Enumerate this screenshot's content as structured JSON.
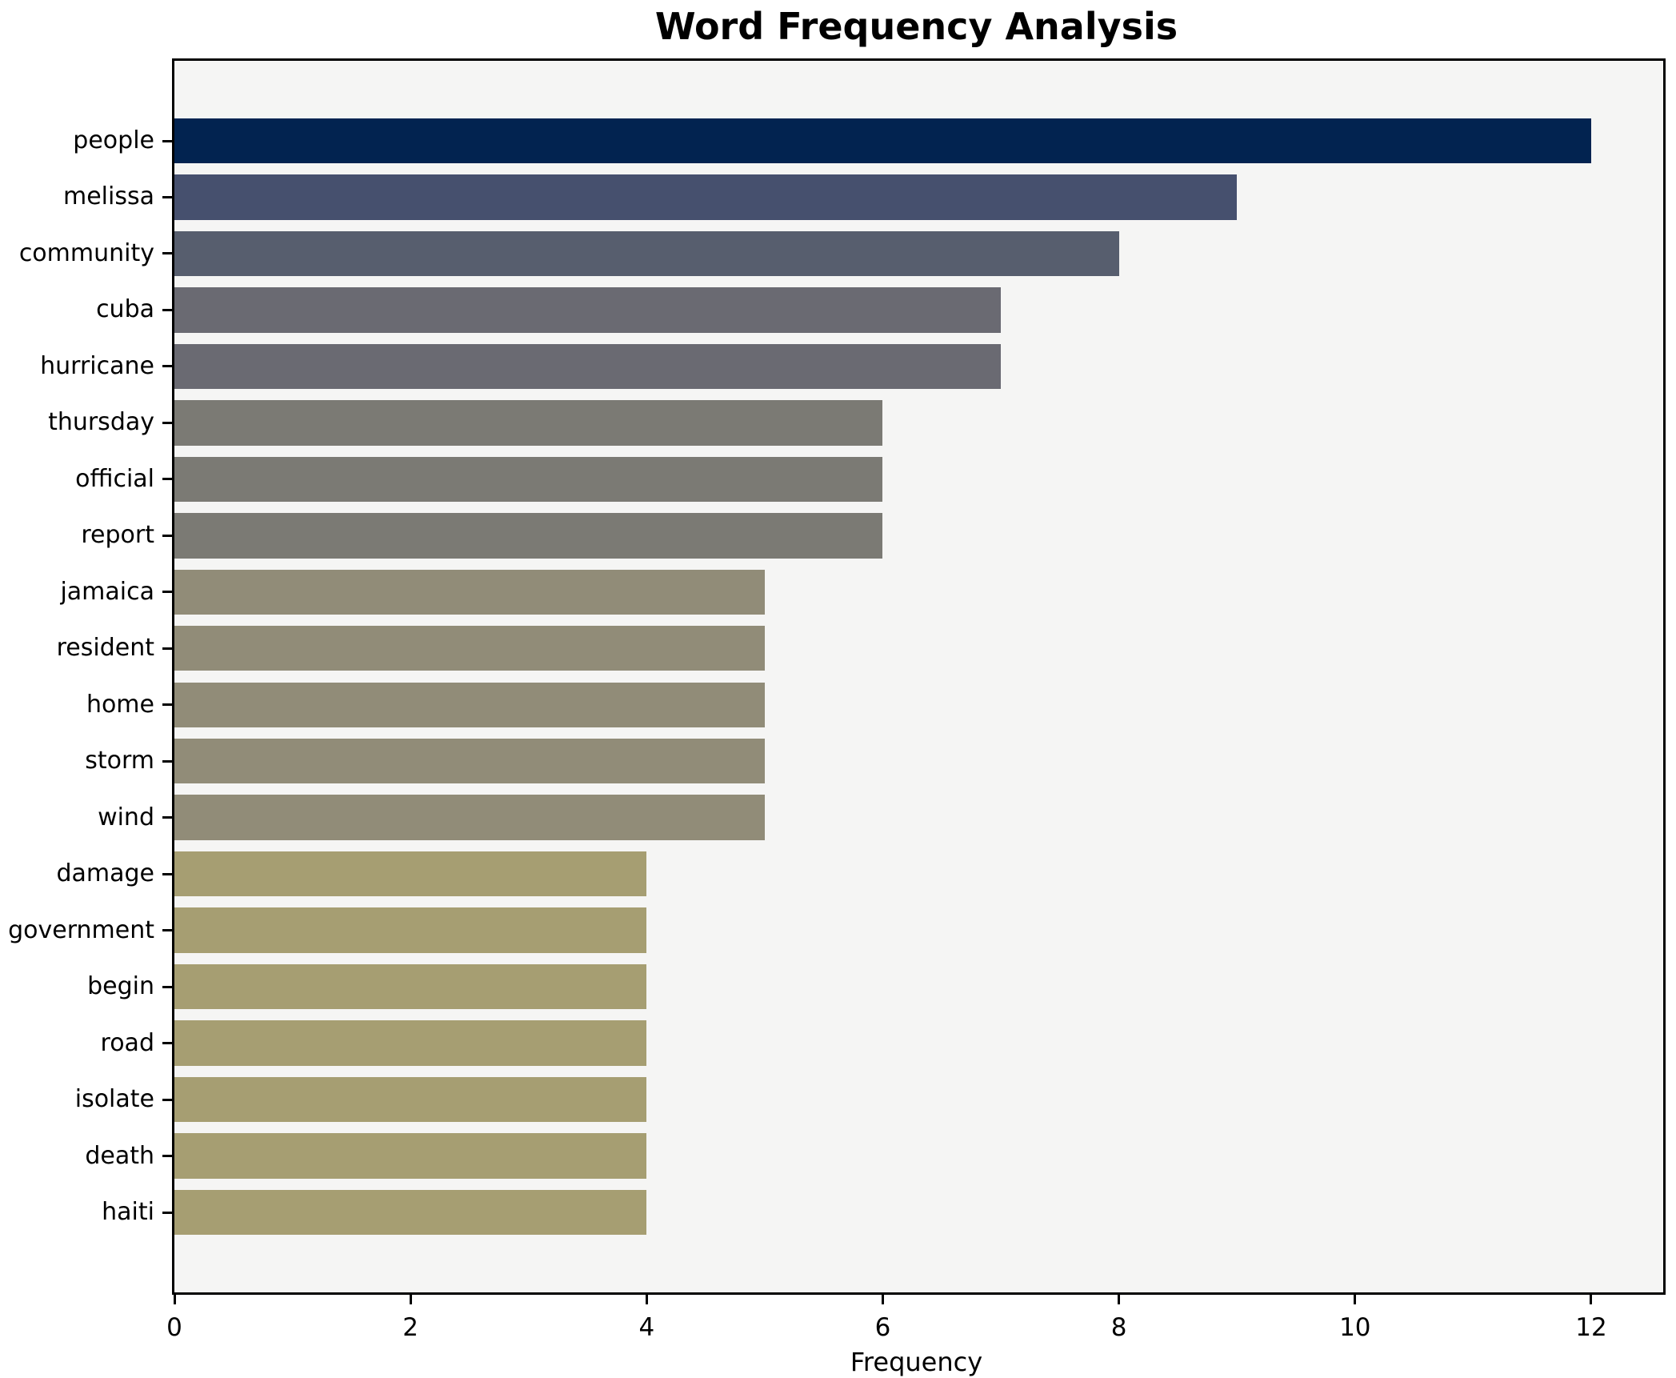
{
  "figure": {
    "background": "#ffffff",
    "plot_background": "#f5f5f4",
    "spine_color": "#000000"
  },
  "chart_data": {
    "type": "bar",
    "orientation": "horizontal",
    "title": "Word Frequency Analysis",
    "xlabel": "Frequency",
    "ylabel": "",
    "categories": [
      "people",
      "melissa",
      "community",
      "cuba",
      "hurricane",
      "thursday",
      "official",
      "report",
      "jamaica",
      "resident",
      "home",
      "storm",
      "wind",
      "damage",
      "government",
      "begin",
      "road",
      "isolate",
      "death",
      "haiti"
    ],
    "values": [
      12,
      9,
      8,
      7,
      7,
      6,
      6,
      6,
      5,
      5,
      5,
      5,
      5,
      4,
      4,
      4,
      4,
      4,
      4,
      4
    ],
    "bar_colors": [
      "#022350",
      "#46506e",
      "#575e6e",
      "#6a6a72",
      "#6a6a72",
      "#7b7a74",
      "#7b7a74",
      "#7b7a74",
      "#918c78",
      "#918c78",
      "#918c78",
      "#918c78",
      "#918c78",
      "#a69e72",
      "#a69e72",
      "#a69e72",
      "#a69e72",
      "#a69e72",
      "#a69e72",
      "#a69e72"
    ],
    "xlim": [
      0,
      12.61
    ],
    "xticks": [
      0,
      2,
      4,
      6,
      8,
      10,
      12
    ],
    "grid": false,
    "legend": null
  }
}
